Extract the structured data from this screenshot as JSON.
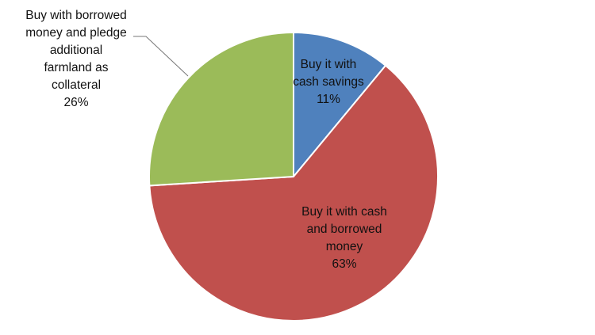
{
  "chart_data": {
    "type": "pie",
    "title": "",
    "series": [
      {
        "values": [
          11,
          63,
          26
        ]
      }
    ],
    "slices": [
      {
        "label_lines": [
          "Buy it with",
          "cash savings"
        ],
        "percent_label": "11%",
        "value": 11,
        "color": "#4f81bd"
      },
      {
        "label_lines": [
          "Buy it with cash",
          "and borrowed",
          "money"
        ],
        "percent_label": "63%",
        "value": 63,
        "color": "#c0504d"
      },
      {
        "label_lines": [
          "Buy with borrowed",
          "money and pledge",
          "additional",
          "farmland as",
          "collateral"
        ],
        "percent_label": "26%",
        "value": 26,
        "color": "#9bbb59"
      }
    ],
    "start_angle_deg": 0,
    "direction": "clockwise",
    "legend": "none",
    "label_style": "data labels with category name and percentage"
  }
}
